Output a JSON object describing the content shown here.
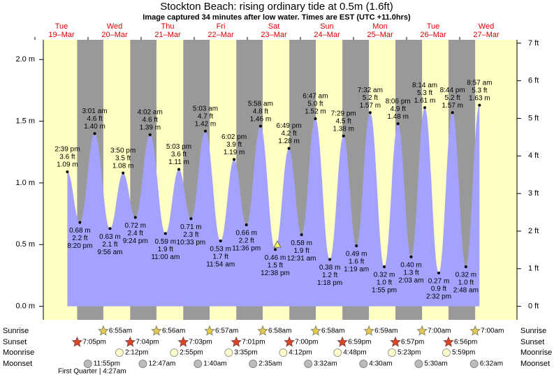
{
  "chart_data": {
    "type": "tide",
    "title": "Stockton Beach: rising  ordinary tide at 0.5m (1.6ft)",
    "subtitle": "Image captured 34 minutes after low water. Times are EST (UTC +11.0hrs)",
    "days": [
      {
        "name": "Tue",
        "date": "19–Mar"
      },
      {
        "name": "Wed",
        "date": "20–Mar"
      },
      {
        "name": "Thu",
        "date": "21–Mar"
      },
      {
        "name": "Fri",
        "date": "22–Mar"
      },
      {
        "name": "Sat",
        "date": "23–Mar"
      },
      {
        "name": "Sun",
        "date": "24–Mar"
      },
      {
        "name": "Mon",
        "date": "25–Mar"
      },
      {
        "name": "Tue",
        "date": "26–Mar"
      },
      {
        "name": "Wed",
        "date": "27–Mar"
      }
    ],
    "tides": {
      "times": [
        "2:39 pm",
        "8:20 pm",
        "3:01 am",
        "9:56 am",
        "3:50 pm",
        "9:24 pm",
        "4:02 am",
        "11:00 am",
        "5:03 pm",
        "10:33 pm",
        "5:03 am",
        "11:54 am",
        "6:02 pm",
        "11:36 pm",
        "5:58 am",
        "12:38 pm",
        "6:49 pm",
        "12:31 am",
        "6:47 am",
        "1:18 pm",
        "7:29 pm",
        "1:19 am",
        "7:32 am",
        "1:55 pm",
        "8:06 pm",
        "2:03 am",
        "8:14 am",
        "2:32 pm",
        "8:44 pm",
        "2:48 am",
        "8:57 am"
      ],
      "values": [
        1.09,
        0.68,
        1.4,
        0.63,
        1.08,
        0.72,
        1.39,
        0.59,
        1.11,
        0.71,
        1.42,
        0.53,
        1.19,
        0.66,
        1.46,
        0.46,
        1.28,
        0.58,
        1.52,
        0.38,
        1.38,
        0.49,
        1.57,
        0.32,
        1.48,
        0.4,
        1.61,
        0.27,
        1.57,
        0.32,
        1.63
      ],
      "value_labels": [
        "1.09 m",
        "0.68 m",
        "1.40 m",
        "0.63 m",
        "1.08 m",
        "0.72 m",
        "1.39 m",
        "0.59 m",
        "1.11 m",
        "0.71 m",
        "1.42 m",
        "0.53 m",
        "1.19 m",
        "0.66 m",
        "1.46 m",
        "0.46 m",
        "1.28 m",
        "0.58 m",
        "1.52 m",
        "0.38 m",
        "1.38 m",
        "0.49 m",
        "1.57 m",
        "0.32 m",
        "1.48 m",
        "0.40 m",
        "1.61 m",
        "0.27 m",
        "1.57 m",
        "0.32 m",
        "1.63 m"
      ],
      "ft_labels": [
        "3.6 ft",
        "2.2 ft",
        "4.6 ft",
        "2.1 ft",
        "3.5 ft",
        "2.4 ft",
        "4.6 ft",
        "1.9 ft",
        "3.6 ft",
        "2.3 ft",
        "4.7 ft",
        "1.7 ft",
        "3.9 ft",
        "2.2 ft",
        "4.8 ft",
        "1.5 ft",
        "4.2 ft",
        "1.9 ft",
        "5.0 ft",
        "1.2 ft",
        "4.5 ft",
        "1.6 ft",
        "5.2 ft",
        "1.0 ft",
        "4.9 ft",
        "1.3 ft",
        "5.3 ft",
        "0.9 ft",
        "5.2 ft",
        "1.0 ft",
        "5.3 ft"
      ]
    },
    "current_level": 0.5,
    "ylim": [
      -0.11,
      2.16
    ],
    "yticks": [
      {
        "value": 0,
        "label": "0.0 m"
      },
      {
        "value": 0.5,
        "label": "0.5 m"
      },
      {
        "value": 1,
        "label": "1.0 m"
      },
      {
        "value": 1.5,
        "label": "1.5 m"
      },
      {
        "value": 2,
        "label": "2.0 m"
      }
    ],
    "y2lim": [
      -0.36,
      7.09
    ],
    "y2ticks": [
      {
        "value": 0,
        "label": "0 ft"
      },
      {
        "value": 1,
        "label": "1 ft"
      },
      {
        "value": 2,
        "label": "2 ft"
      },
      {
        "value": 3,
        "label": "3 ft"
      },
      {
        "value": 4,
        "label": "4 ft"
      },
      {
        "value": 5,
        "label": "5 ft"
      },
      {
        "value": 6,
        "label": "6 ft"
      },
      {
        "value": 7,
        "label": "7 ft"
      }
    ],
    "colors": {
      "day": "#ffffc4",
      "night": "#999999",
      "water": "#a3a3ff",
      "dates": "#dd0000"
    },
    "rows": [
      {
        "name": "Sunrise",
        "times": [
          null,
          "6:55am",
          "6:56am",
          "6:57am",
          "6:58am",
          "6:58am",
          "6:59am",
          "7:00am",
          "7:00am"
        ]
      },
      {
        "name": "Sunset",
        "times": [
          "7:05pm",
          "7:04pm",
          "7:03pm",
          "7:01pm",
          "7:00pm",
          "6:59pm",
          "6:57pm",
          "6:56pm",
          null
        ]
      },
      {
        "name": "Moonrise",
        "times": [
          null,
          "2:12pm",
          "2:55pm",
          "3:35pm",
          "4:12pm",
          "4:48pm",
          "5:23pm",
          "5:59pm",
          null
        ]
      },
      {
        "name": "Moonset",
        "times": [
          "11:55pm",
          null,
          "12:47am",
          "1:40am",
          "2:35am",
          "3:32am",
          "4:30am",
          "5:30am",
          "6:32am"
        ]
      }
    ],
    "moon_phase": "First Quarter | 4:27am"
  }
}
